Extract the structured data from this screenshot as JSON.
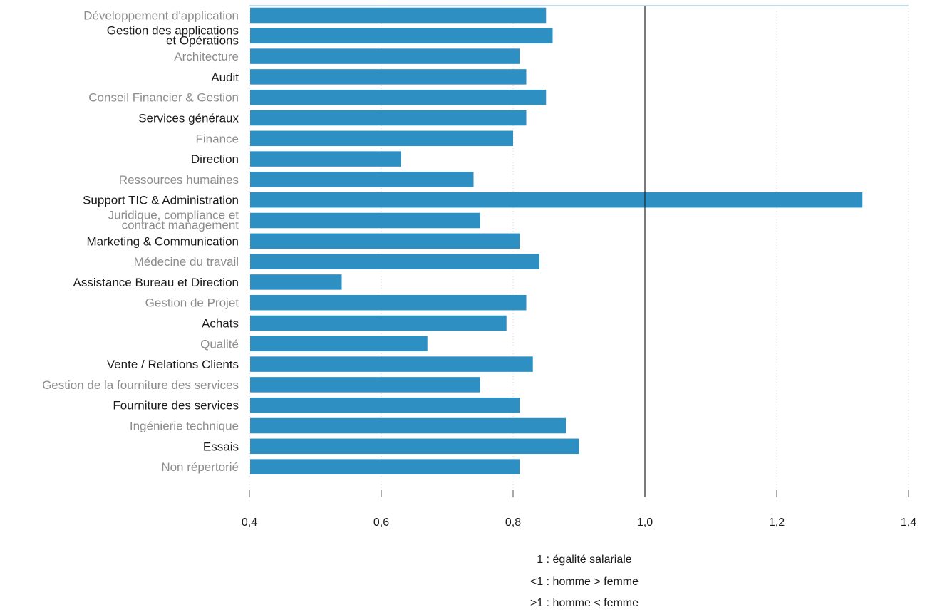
{
  "chart_data": {
    "type": "bar",
    "orientation": "horizontal",
    "categories": [
      "Développement d'application",
      "Gestion des applications\net Opérations",
      "Architecture",
      "Audit",
      "Conseil Financier & Gestion",
      "Services généraux",
      "Finance",
      "Direction",
      "Ressources humaines",
      "Support TIC & Administration",
      "Juridique, compliance et\ncontract management",
      "Marketing & Communication",
      "Médecine du travail",
      "Assistance Bureau et Direction",
      "Gestion  de Projet",
      "Achats",
      "Qualité",
      "Vente / Relations Clients",
      "Gestion de la fourniture des services",
      "Fourniture des services",
      "Ingénierie technique",
      "Essais",
      "Non répertorié"
    ],
    "values": [
      0.85,
      0.86,
      0.81,
      0.82,
      0.85,
      0.82,
      0.8,
      0.63,
      0.74,
      1.33,
      0.75,
      0.81,
      0.84,
      0.54,
      0.82,
      0.79,
      0.67,
      0.83,
      0.75,
      0.81,
      0.88,
      0.9,
      0.81
    ],
    "xlim": [
      0.4,
      1.4
    ],
    "xticks": [
      "0,4",
      "0,6",
      "0,8",
      "1,0",
      "1,2",
      "1,4"
    ],
    "xtick_values": [
      0.4,
      0.6,
      0.8,
      1.0,
      1.2,
      1.4
    ],
    "reference_line": 1.0,
    "bar_color": "#2e8fc3",
    "label_colors": [
      "#8c8c8c",
      "#1a1a1a"
    ],
    "grid": "vertical dotted"
  },
  "legend": {
    "line1": "1 : égalité salariale",
    "line2": "<1 : homme > femme",
    "line3": ">1 : homme < femme"
  }
}
